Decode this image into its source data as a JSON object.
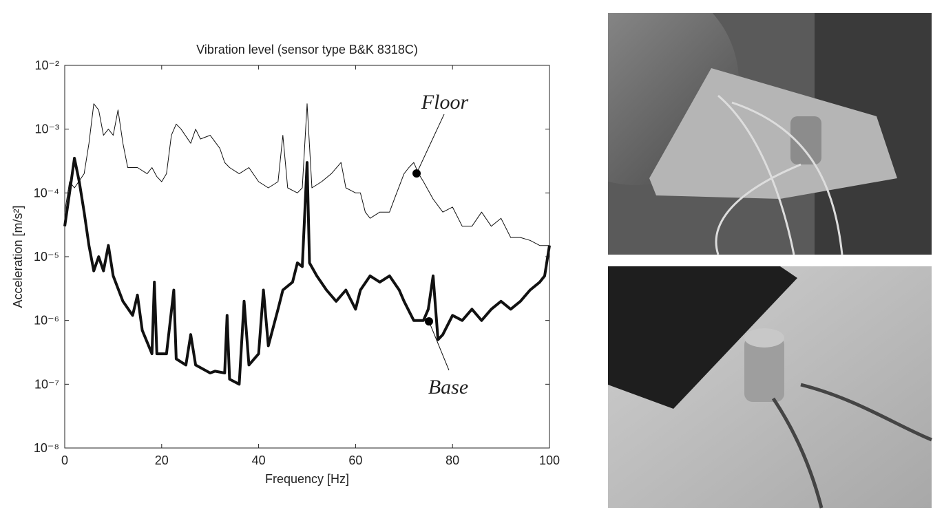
{
  "chart_data": {
    "type": "line",
    "title": "Vibration level (sensor type B&K 8318C)",
    "xlabel": "Frequency [Hz]",
    "ylabel": "Acceleration [m/s²]",
    "yscale": "log",
    "xlim": [
      0,
      100
    ],
    "ylim": [
      1e-08,
      0.01
    ],
    "xticks": [
      0,
      20,
      40,
      60,
      80,
      100
    ],
    "yticks": [
      {
        "value": 1e-08,
        "label": "10⁻⁸"
      },
      {
        "value": 1e-07,
        "label": "10⁻⁷"
      },
      {
        "value": 1e-06,
        "label": "10⁻⁶"
      },
      {
        "value": 1e-05,
        "label": "10⁻⁵"
      },
      {
        "value": 0.0001,
        "label": "10⁻⁴"
      },
      {
        "value": 0.001,
        "label": "10⁻³"
      },
      {
        "value": 0.01,
        "label": "10⁻²"
      }
    ],
    "grid": false,
    "series": [
      {
        "name": "Floor",
        "color": "#111111",
        "width": 1,
        "x": [
          0,
          1,
          2,
          4,
          5,
          6,
          7,
          8,
          9,
          10,
          11,
          12,
          13,
          15,
          17,
          18,
          19,
          20,
          21,
          22,
          23,
          24,
          26,
          27,
          28,
          30,
          32,
          33,
          34,
          36,
          38,
          40,
          42,
          44,
          45,
          46,
          48,
          49,
          50,
          51,
          53,
          55,
          57,
          58,
          60,
          61,
          62,
          63,
          65,
          67,
          68,
          70,
          71,
          72,
          73,
          74,
          76,
          78,
          80,
          82,
          84,
          86,
          88,
          90,
          92,
          94,
          96,
          98,
          100
        ],
        "values": [
          5e-05,
          0.00015,
          0.00012,
          0.0002,
          0.0006,
          0.0025,
          0.002,
          0.0008,
          0.001,
          0.0008,
          0.002,
          0.0006,
          0.00025,
          0.00025,
          0.0002,
          0.00025,
          0.00018,
          0.00015,
          0.0002,
          0.0008,
          0.0012,
          0.001,
          0.0006,
          0.001,
          0.0007,
          0.0008,
          0.0005,
          0.0003,
          0.00025,
          0.0002,
          0.00025,
          0.00015,
          0.00012,
          0.00015,
          0.0008,
          0.00012,
          0.0001,
          0.00012,
          0.0025,
          0.00012,
          0.00015,
          0.0002,
          0.0003,
          0.00012,
          0.0001,
          0.0001,
          5e-05,
          4e-05,
          5e-05,
          5e-05,
          8e-05,
          0.0002,
          0.00025,
          0.0003,
          0.0002,
          0.00015,
          8e-05,
          5e-05,
          6e-05,
          3e-05,
          3e-05,
          5e-05,
          3e-05,
          4e-05,
          2e-05,
          2e-05,
          1.8e-05,
          1.5e-05,
          1.5e-05
        ]
      },
      {
        "name": "Base",
        "color": "#111111",
        "width": 4,
        "x": [
          0,
          1,
          2,
          3,
          4,
          5,
          6,
          7,
          8,
          9,
          10,
          12,
          14,
          15,
          16,
          18,
          18.5,
          19,
          21,
          22.5,
          23,
          25,
          26,
          27,
          30,
          31,
          33,
          33.5,
          34,
          36,
          37,
          38,
          40,
          41,
          42,
          44,
          45,
          47,
          48,
          49,
          50,
          50.5,
          52,
          54,
          56,
          58,
          60,
          61,
          63,
          65,
          67,
          69,
          70,
          72,
          74,
          75,
          76,
          77,
          78,
          80,
          82,
          84,
          86,
          88,
          90,
          92,
          94,
          96,
          98,
          99,
          100
        ],
        "values": [
          3e-05,
          0.0001,
          0.00035,
          0.00015,
          5e-05,
          1.5e-05,
          6e-06,
          1e-05,
          6e-06,
          1.5e-05,
          5e-06,
          2e-06,
          1.2e-06,
          2.5e-06,
          7e-07,
          3e-07,
          4e-06,
          3e-07,
          3e-07,
          3e-06,
          2.5e-07,
          2e-07,
          6e-07,
          2e-07,
          1.5e-07,
          1.6e-07,
          1.5e-07,
          1.2e-06,
          1.2e-07,
          1e-07,
          2e-06,
          2e-07,
          3e-07,
          3e-06,
          4e-07,
          1.5e-06,
          3e-06,
          4e-06,
          8e-06,
          7e-06,
          0.0003,
          8e-06,
          5e-06,
          3e-06,
          2e-06,
          3e-06,
          1.5e-06,
          3e-06,
          5e-06,
          4e-06,
          5e-06,
          3e-06,
          2e-06,
          1e-06,
          1e-06,
          1.5e-06,
          5e-06,
          5e-07,
          6e-07,
          1.2e-06,
          1e-06,
          1.5e-06,
          1e-06,
          1.5e-06,
          2e-06,
          1.5e-06,
          2e-06,
          3e-06,
          4e-06,
          5e-06,
          1.5e-05
        ]
      }
    ]
  }
}
